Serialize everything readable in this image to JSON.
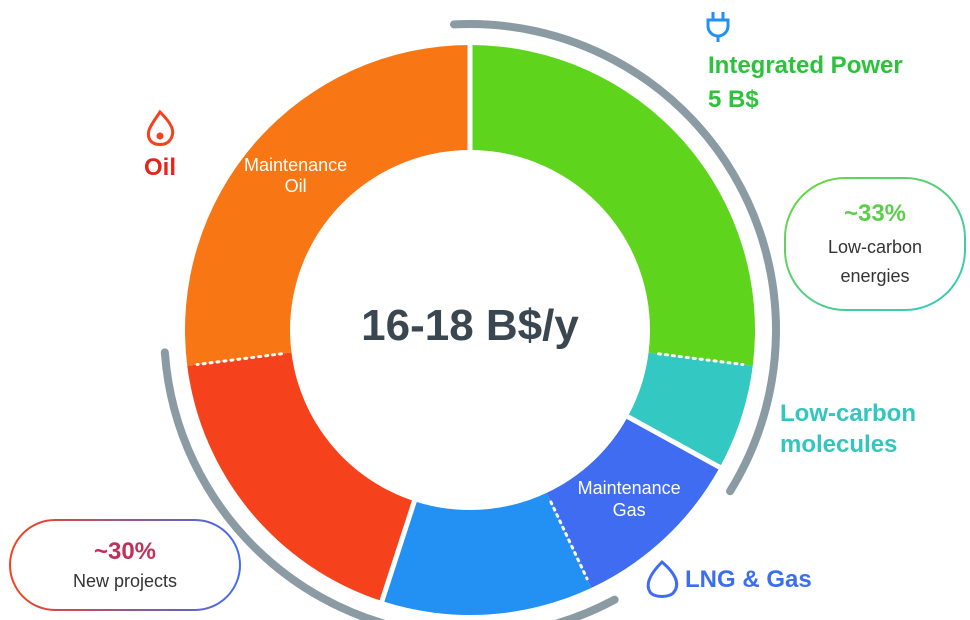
{
  "chart_data": {
    "type": "donut",
    "center_label": "16-18 B$/y",
    "categories": [
      null,
      null,
      "Maintenance Gas",
      null,
      null,
      "Maintenance Oil"
    ],
    "values": [
      27,
      6,
      10,
      12,
      18,
      27
    ],
    "colors": [
      "#5fd41c",
      "#33c9c2",
      "#3f6cf0",
      "#2390f3",
      "#f5421c",
      "#f87614"
    ],
    "labels": {
      "integrated_power": "Integrated Power",
      "integrated_power_value": "5 B$",
      "oil": "Oil",
      "low_carbon_molecules": "Low-carbon molecules",
      "lng_gas": "LNG & Gas"
    },
    "callouts": [
      {
        "value_label": "~33%",
        "text": "Low-carbon energies"
      },
      {
        "value_label": "~30%",
        "text": "New projects"
      }
    ]
  }
}
